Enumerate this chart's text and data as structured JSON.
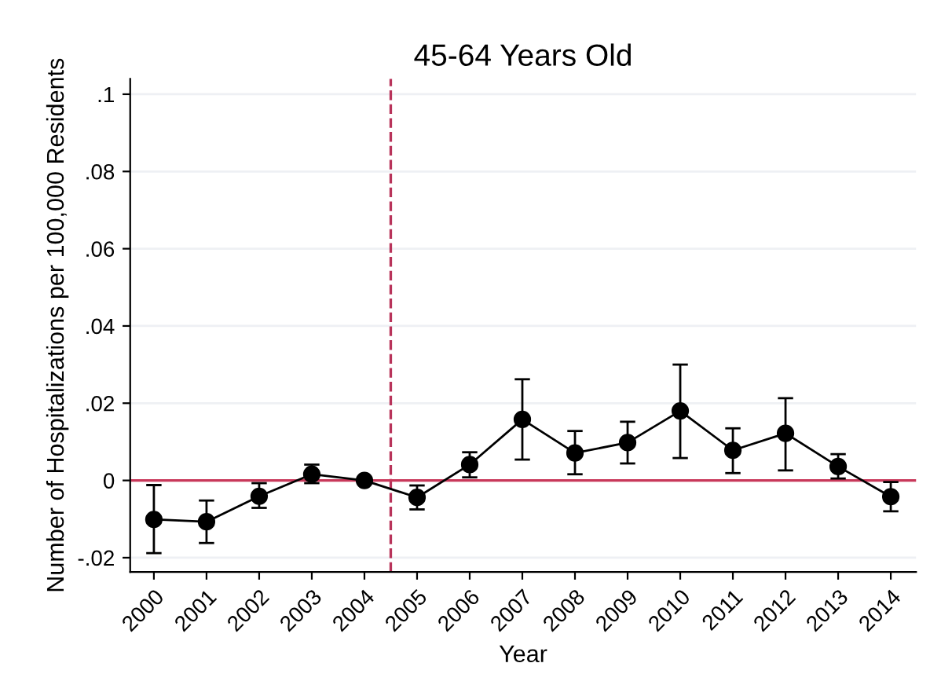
{
  "chart_data": {
    "type": "line",
    "title": "45-64 Years Old",
    "xlabel": "Year",
    "ylabel": "Number of Hospitalizations per 100,000 Residents",
    "x": [
      2000,
      2001,
      2002,
      2003,
      2004,
      2005,
      2006,
      2007,
      2008,
      2009,
      2010,
      2011,
      2012,
      2013,
      2014
    ],
    "series": [
      {
        "color": "#000000",
        "values": [
          -0.0101,
          -0.0107,
          -0.0041,
          0.0016,
          0.0,
          -0.0044,
          0.0041,
          0.0158,
          0.0071,
          0.0098,
          0.018,
          0.0078,
          0.0122,
          0.0036,
          -0.0042
        ],
        "errors": [
          [
            -0.0188,
            -0.0012
          ],
          [
            -0.0162,
            -0.0052
          ],
          [
            -0.0071,
            -0.0007
          ],
          [
            -0.0007,
            0.0041
          ],
          null,
          [
            -0.0075,
            -0.0013
          ],
          [
            0.0008,
            0.0073
          ],
          [
            0.0054,
            0.0262
          ],
          [
            0.0016,
            0.0128
          ],
          [
            0.0044,
            0.0152
          ],
          [
            0.0058,
            0.03
          ],
          [
            0.0019,
            0.0135
          ],
          [
            0.0026,
            0.0213
          ],
          [
            0.0005,
            0.0068
          ],
          [
            -0.008,
            -0.0004
          ]
        ]
      }
    ],
    "xlim": [
      1999.55,
      2014.48
    ],
    "xticks": [
      2000,
      2001,
      2002,
      2003,
      2004,
      2005,
      2006,
      2007,
      2008,
      2009,
      2010,
      2011,
      2012,
      2013,
      2014
    ],
    "ylim": [
      -0.0237,
      0.104
    ],
    "yticks": [
      {
        "value": -0.02,
        "label": "-.02"
      },
      0,
      {
        "value": 0.02,
        "label": ".02"
      },
      {
        "value": 0.04,
        "label": ".04"
      },
      {
        "value": 0.06,
        "label": ".06"
      },
      {
        "value": 0.08,
        "label": ".08"
      },
      {
        "value": 0.1,
        "label": ".1"
      }
    ],
    "ref_lines": [
      {
        "axis": "x",
        "value": 2004.5,
        "color": "#b8335a",
        "line_style": "dashed"
      },
      {
        "axis": "y",
        "value": 0,
        "color": "#c8385a",
        "line_style": "solid"
      }
    ],
    "grid": "y",
    "marker": "circle",
    "line_style": "solid",
    "legend": false
  }
}
